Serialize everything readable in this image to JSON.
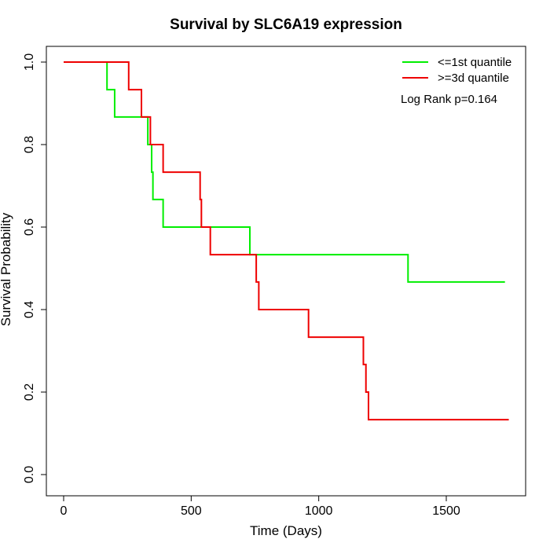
{
  "chart_data": {
    "type": "line",
    "title": "Survival by SLC6A19 expression",
    "xlabel": "Time (Days)",
    "ylabel": "Survival Probability",
    "xlim": [
      0,
      1800
    ],
    "ylim": [
      0,
      1
    ],
    "x_ticks": [
      0,
      500,
      1000,
      1500
    ],
    "y_ticks": [
      0.0,
      0.2,
      0.4,
      0.6,
      0.8,
      1.0
    ],
    "x_tick_labels": [
      "0",
      "500",
      "1000",
      "1500"
    ],
    "y_tick_labels": [
      "0.0",
      "0.2",
      "0.4",
      "0.6",
      "0.8",
      "1.0"
    ],
    "legend_position": "top-right",
    "annotation": "Log Rank p=0.164",
    "series": [
      {
        "name": "<=1st quantile",
        "color": "#00ee00",
        "step_points": [
          [
            0,
            1.0
          ],
          [
            170,
            0.933
          ],
          [
            200,
            0.867
          ],
          [
            330,
            0.8
          ],
          [
            345,
            0.733
          ],
          [
            350,
            0.667
          ],
          [
            390,
            0.6
          ],
          [
            730,
            0.533
          ],
          [
            1350,
            0.467
          ],
          [
            1730,
            0.467
          ]
        ]
      },
      {
        "name": ">=3d quantile",
        "color": "#ee0000",
        "step_points": [
          [
            0,
            1.0
          ],
          [
            255,
            0.933
          ],
          [
            305,
            0.867
          ],
          [
            340,
            0.8
          ],
          [
            390,
            0.733
          ],
          [
            535,
            0.667
          ],
          [
            540,
            0.6
          ],
          [
            575,
            0.533
          ],
          [
            755,
            0.467
          ],
          [
            765,
            0.4
          ],
          [
            960,
            0.333
          ],
          [
            1175,
            0.267
          ],
          [
            1185,
            0.2
          ],
          [
            1195,
            0.133
          ],
          [
            1745,
            0.133
          ]
        ]
      }
    ]
  }
}
